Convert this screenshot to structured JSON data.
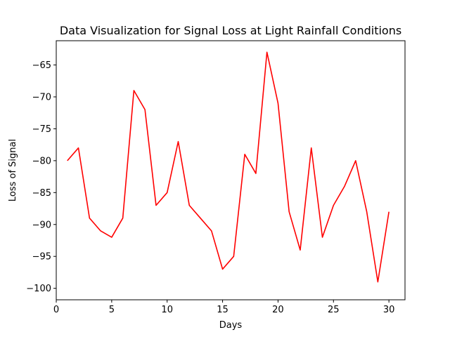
{
  "chart_data": {
    "type": "line",
    "title": "Data Visualization for Signal Loss at Light Rainfall Conditions",
    "xlabel": "Days",
    "ylabel": "Loss of Signal",
    "xlim": [
      0,
      31.45
    ],
    "ylim": [
      -101.8,
      -61.2
    ],
    "x_ticks": [
      0,
      5,
      10,
      15,
      20,
      25,
      30
    ],
    "y_ticks": [
      -100,
      -95,
      -90,
      -85,
      -80,
      -75,
      -70,
      -65
    ],
    "x_tick_labels": [
      "0",
      "5",
      "10",
      "15",
      "20",
      "25",
      "30"
    ],
    "y_tick_labels": [
      "−100",
      "−95",
      "−90",
      "−85",
      "−80",
      "−75",
      "−70",
      "−65"
    ],
    "grid": false,
    "series": [
      {
        "color": "#ff0000",
        "x": [
          1,
          2,
          3,
          4,
          5,
          6,
          7,
          8,
          9,
          10,
          11,
          12,
          13,
          14,
          15,
          16,
          17,
          18,
          19,
          20,
          21,
          22,
          23,
          24,
          25,
          26,
          27,
          28,
          29,
          30
        ],
        "values": [
          -80,
          -78,
          -89,
          -91,
          -92,
          -89,
          -69,
          -72,
          -87,
          -85,
          -77,
          -87,
          -89,
          -91,
          -97,
          -95,
          -79,
          -82,
          -63,
          -71,
          -88,
          -94,
          -78,
          -92,
          -87,
          -84,
          -80,
          -88,
          -99,
          -88
        ]
      }
    ]
  }
}
